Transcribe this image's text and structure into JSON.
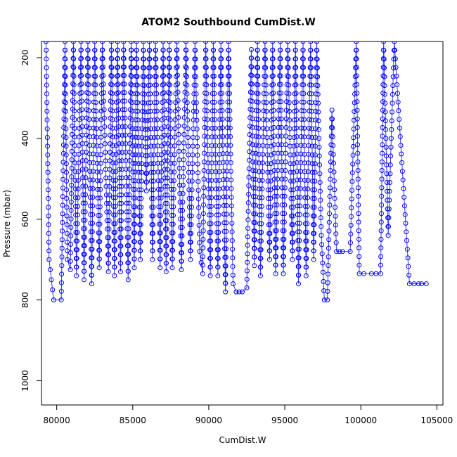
{
  "chart_data": {
    "type": "line",
    "title": "ATOM2 Southbound CumDist.W",
    "xlabel": "CumDist.W",
    "ylabel": "Pressure (mbar)",
    "xlim": [
      79000,
      105400
    ],
    "ylim": [
      1060,
      160
    ],
    "y_reversed": true,
    "x_ticks": [
      80000,
      85000,
      90000,
      95000,
      100000,
      105000
    ],
    "x_tick_labels": [
      "80000",
      "85000",
      "90000",
      "95000",
      "100000",
      "105000"
    ],
    "y_ticks": [
      200,
      400,
      600,
      800,
      1000
    ],
    "y_tick_labels": [
      "200",
      "400",
      "600",
      "800",
      "1000"
    ],
    "grid": false,
    "legend": "none",
    "line_color": "#3a3aff",
    "point_color": "#0000ff",
    "series": [
      {
        "x": [
          79300,
          79500,
          79800,
          80300,
          80550,
          80700,
          80900,
          81100,
          81300,
          81600,
          81800,
          82050,
          82300,
          82500,
          82800,
          83000,
          83400,
          83600,
          83800,
          84000,
          84200,
          84400,
          84700,
          84900,
          85100,
          85250,
          85500,
          85700,
          85900,
          86100,
          86300,
          86500,
          86800,
          87000,
          87200,
          87400,
          87600,
          87900,
          88200,
          88500,
          88800,
          89100,
          89400,
          89600,
          89800,
          90100,
          90300,
          90600,
          90800,
          91100,
          91300,
          91600,
          91800,
          92000,
          92200,
          92500,
          92800,
          93000,
          93200,
          93400,
          93700,
          94000,
          94200,
          94400,
          94700,
          94900,
          95200,
          95500,
          95700,
          95900,
          96200,
          96400,
          96700,
          96900,
          97100,
          97400,
          97600,
          97800,
          98100,
          98400,
          98600,
          98800,
          99300,
          99700,
          99900,
          100200,
          100700,
          101000,
          101300,
          101500,
          101800,
          102200,
          103200,
          103500,
          103800,
          104000,
          104300
        ],
        "y": [
          160,
          700,
          800,
          800,
          160,
          700,
          725,
          160,
          740,
          160,
          750,
          160,
          760,
          160,
          720,
          160,
          730,
          160,
          740,
          160,
          730,
          160,
          750,
          160,
          720,
          160,
          700,
          160,
          530,
          160,
          700,
          160,
          720,
          160,
          730,
          160,
          720,
          160,
          725,
          160,
          700,
          160,
          680,
          735,
          160,
          740,
          160,
          740,
          160,
          780,
          160,
          760,
          780,
          780,
          780,
          770,
          180,
          715,
          160,
          740,
          160,
          700,
          160,
          735,
          160,
          735,
          160,
          700,
          160,
          760,
          160,
          740,
          160,
          700,
          160,
          640,
          800,
          800,
          330,
          680,
          680,
          680,
          680,
          160,
          735,
          735,
          735,
          735,
          735,
          160,
          640,
          160,
          760,
          760,
          760,
          760,
          760
        ]
      }
    ]
  }
}
